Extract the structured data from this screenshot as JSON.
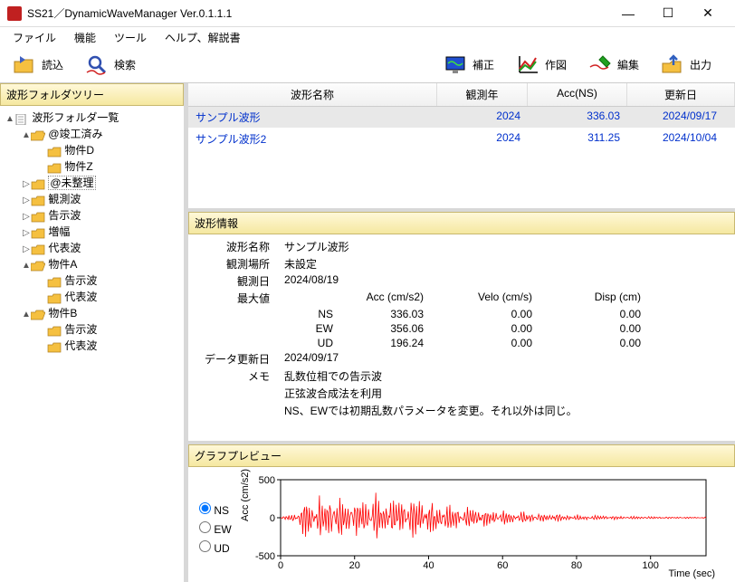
{
  "title": "SS21／DynamicWaveManager Ver.0.1.1.1",
  "menu": [
    "ファイル",
    "機能",
    "ツール",
    "ヘルプ、解説書"
  ],
  "toolbar": {
    "read": "読込",
    "search": "検索",
    "correct": "補正",
    "draw": "作図",
    "edit": "編集",
    "output": "出力"
  },
  "treeTitle": "波形フォルダツリー",
  "tree": [
    {
      "d": 0,
      "t": "▲",
      "ic": "doc",
      "l": "波形フォルダ一覧"
    },
    {
      "d": 1,
      "t": "▲",
      "ic": "fo",
      "l": "@竣工済み"
    },
    {
      "d": 2,
      "t": "",
      "ic": "fc",
      "l": "物件D"
    },
    {
      "d": 2,
      "t": "",
      "ic": "fc",
      "l": "物件Z"
    },
    {
      "d": 1,
      "t": "▷",
      "ic": "fc",
      "l": "@未整理",
      "box": true
    },
    {
      "d": 1,
      "t": "▷",
      "ic": "fc",
      "l": "観測波"
    },
    {
      "d": 1,
      "t": "▷",
      "ic": "fc",
      "l": "告示波"
    },
    {
      "d": 1,
      "t": "▷",
      "ic": "fc",
      "l": "増幅"
    },
    {
      "d": 1,
      "t": "▷",
      "ic": "fc",
      "l": "代表波"
    },
    {
      "d": 1,
      "t": "▲",
      "ic": "fo",
      "l": "物件A"
    },
    {
      "d": 2,
      "t": "",
      "ic": "fc",
      "l": "告示波"
    },
    {
      "d": 2,
      "t": "",
      "ic": "fc",
      "l": "代表波"
    },
    {
      "d": 1,
      "t": "▲",
      "ic": "fo",
      "l": "物件B"
    },
    {
      "d": 2,
      "t": "",
      "ic": "fc",
      "l": "告示波"
    },
    {
      "d": 2,
      "t": "",
      "ic": "fc",
      "l": "代表波"
    }
  ],
  "cols": {
    "name": "波形名称",
    "year": "観測年",
    "acc": "Acc(NS)",
    "date": "更新日"
  },
  "colw": {
    "name": 275,
    "year": 100,
    "acc": 110,
    "date": 110
  },
  "rows": [
    {
      "name": "サンプル波形",
      "year": "2024",
      "acc": "336.03",
      "date": "2024/09/17",
      "sel": true
    },
    {
      "name": "サンプル波形2",
      "year": "2024",
      "acc": "311.25",
      "date": "2024/10/04",
      "sel": false
    }
  ],
  "infoTitle": "波形情報",
  "info": {
    "nameL": "波形名称",
    "name": "サンプル波形",
    "placeL": "観測場所",
    "place": "未設定",
    "dateL": "観測日",
    "date": "2024/08/19",
    "maxL": "最大値",
    "colA": "Acc (cm/s2)",
    "colV": "Velo (cm/s)",
    "colD": "Disp (cm)",
    "ns": "NS",
    "nsA": "336.03",
    "nsV": "0.00",
    "nsD": "0.00",
    "ew": "EW",
    "ewA": "356.06",
    "ewV": "0.00",
    "ewD": "0.00",
    "ud": "UD",
    "udA": "196.24",
    "udV": "0.00",
    "udD": "0.00",
    "updL": "データ更新日",
    "upd": "2024/09/17",
    "memoL": "メモ",
    "memo1": "乱数位相での告示波",
    "memo2": "正弦波合成法を利用",
    "memo3": "NS、EWでは初期乱数パラメータを変更。それ以外は同じ。"
  },
  "previewTitle": "グラフプレビュー",
  "radio": {
    "ns": "NS",
    "ew": "EW",
    "ud": "UD"
  },
  "chart": {
    "ylim": [
      -500,
      500
    ],
    "yticks": [
      -500,
      0,
      500
    ],
    "xlim": [
      0,
      115
    ],
    "xticks": [
      0,
      20,
      40,
      60,
      80,
      100
    ],
    "ylabel": "Acc (cm/s2)",
    "xlabel": "Time (sec)",
    "line": "#ff0000",
    "axis": "#000",
    "grid": "#000"
  }
}
